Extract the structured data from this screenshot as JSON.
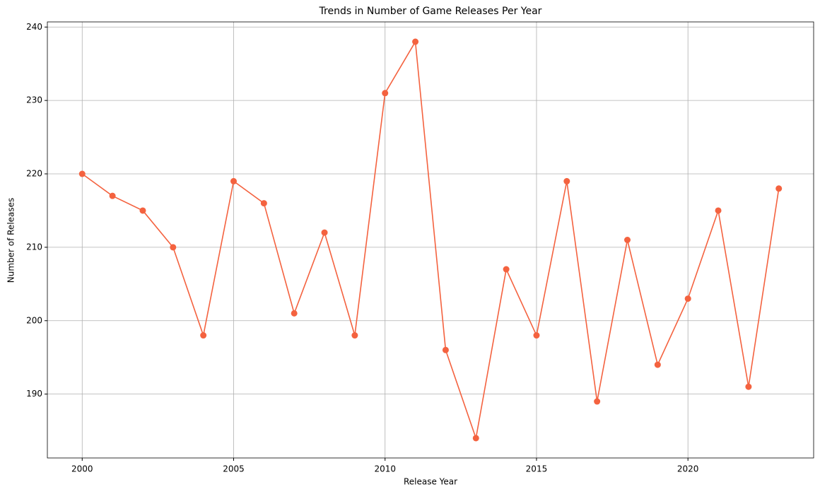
{
  "chart_data": {
    "type": "line",
    "title": "Trends in Number of Game Releases Per Year",
    "x_label": "Release Year",
    "y_label": "Number of Releases",
    "x": [
      2000,
      2001,
      2002,
      2003,
      2004,
      2005,
      2006,
      2007,
      2008,
      2009,
      2010,
      2011,
      2012,
      2013,
      2014,
      2015,
      2016,
      2017,
      2018,
      2019,
      2020,
      2021,
      2022,
      2023
    ],
    "series": [
      {
        "name": "Releases",
        "color": "#f4623f",
        "values": [
          220,
          217,
          215,
          210,
          198,
          219,
          216,
          201,
          212,
          198,
          231,
          238,
          196,
          184,
          207,
          198,
          219,
          189,
          211,
          194,
          203,
          215,
          191,
          218
        ]
      }
    ],
    "xlim": [
      1998.85,
      2024.15
    ],
    "xticks": [
      2000,
      2005,
      2010,
      2015,
      2020
    ],
    "ylim": [
      181.3,
      240.7
    ],
    "yticks": [
      190,
      200,
      210,
      220,
      230,
      240
    ],
    "grid": true,
    "markers": true
  }
}
